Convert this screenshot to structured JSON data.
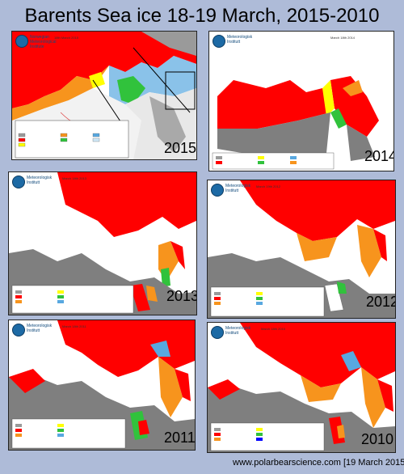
{
  "page": {
    "title": "Barents Sea ice 18-19 March, 2015-2010",
    "footer": "www.polarbearscience.com  [19 March 2015]"
  },
  "panels": [
    {
      "year": "2015",
      "institute": [
        "Norwegian",
        "Meteorological",
        "Institute"
      ],
      "date": "18th March 2015"
    },
    {
      "year": "2014",
      "institute": [
        "Meteorologisk",
        "Institutt"
      ],
      "date": "March 18th 2014"
    },
    {
      "year": "2013",
      "institute": [
        "Meteorologisk",
        "Institutt"
      ],
      "date": "March 18th 2013"
    },
    {
      "year": "2012",
      "institute": [
        "Meteorologisk",
        "Institutt"
      ],
      "date": "March 19th 2012"
    },
    {
      "year": "2011",
      "institute": [
        "Meteorologisk",
        "Institutt"
      ],
      "date": "March 18th 2011"
    },
    {
      "year": "2010",
      "institute": [
        "Meteorologisk",
        "Institutt"
      ],
      "date": "March 18th 2010"
    }
  ],
  "colors": {
    "background": "#aebbd8",
    "fast_ice": "#9a9a9a",
    "very_close_drift_ice": "#ff0000",
    "close_drift_ice": "#f7941d",
    "open_drift_ice": "#ffff00",
    "very_open_drift_ice": "#31c23c",
    "open_water": "#58a8e0",
    "land": "#7f7f7f",
    "sea": "#ffffff"
  }
}
